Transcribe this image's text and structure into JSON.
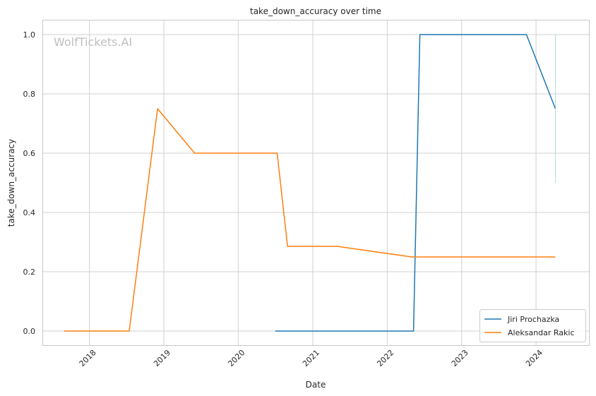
{
  "chart_data": {
    "type": "line",
    "title": "take_down_accuracy over time",
    "xlabel": "Date",
    "ylabel": "take_down_accuracy",
    "watermark": "WolfTickets.AI",
    "xlim": [
      "2017-05-15",
      "2024-09-20"
    ],
    "ylim": [
      -0.05,
      1.05
    ],
    "x_ticks": [
      "2018",
      "2019",
      "2020",
      "2021",
      "2022",
      "2023",
      "2024"
    ],
    "y_ticks": [
      "0.0",
      "0.2",
      "0.4",
      "0.6",
      "0.8",
      "1.0"
    ],
    "y_tick_values": [
      0.0,
      0.2,
      0.4,
      0.6,
      0.8,
      1.0
    ],
    "grid": true,
    "legend_position": "bottom-right",
    "series": [
      {
        "name": "Jiri Prochazka",
        "color": "#1f77b4",
        "points": [
          {
            "x": "2020-07-01",
            "y": 0.0
          },
          {
            "x": "2022-05-10",
            "y": 0.0
          },
          {
            "x": "2022-06-10",
            "y": 1.0
          },
          {
            "x": "2023-11-15",
            "y": 1.0
          },
          {
            "x": "2024-04-05",
            "y": 0.75
          }
        ]
      },
      {
        "name": "Aleksandar Rakic",
        "color": "#ff7f0e",
        "points": [
          {
            "x": "2017-08-30",
            "y": 0.0
          },
          {
            "x": "2018-07-15",
            "y": 0.0
          },
          {
            "x": "2018-12-01",
            "y": 0.75
          },
          {
            "x": "2019-06-01",
            "y": 0.6
          },
          {
            "x": "2020-07-10",
            "y": 0.6
          },
          {
            "x": "2020-08-30",
            "y": 0.2857
          },
          {
            "x": "2021-05-01",
            "y": 0.2857
          },
          {
            "x": "2022-05-01",
            "y": 0.25
          },
          {
            "x": "2024-04-05",
            "y": 0.25
          }
        ]
      }
    ]
  }
}
